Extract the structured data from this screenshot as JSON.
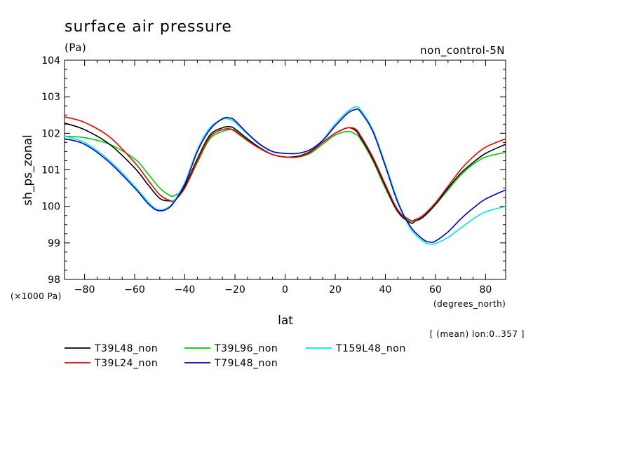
{
  "chart_data": {
    "type": "line",
    "title": "surface air pressure",
    "units": "(Pa)",
    "experiment": "non_control-5N",
    "ylabel": "sh_ps_zonal",
    "xlabel": "lat",
    "x_units": "(degrees_north)",
    "y_scale_note": "(×1000 Pa)",
    "averaging_note": "[ (mean) lon:0..357 ]",
    "xlim": [
      -88,
      88
    ],
    "ylim": [
      98,
      104
    ],
    "xticks": [
      -80,
      -60,
      -40,
      -20,
      0,
      20,
      40,
      60,
      80
    ],
    "yticks": [
      98,
      99,
      100,
      101,
      102,
      103,
      104
    ],
    "grid": false,
    "legend_position": "bottom",
    "series": [
      {
        "name": "T39L48_non",
        "color": "#000000",
        "x": [
          -88,
          -80,
          -70,
          -60,
          -55,
          -50,
          -46,
          -44,
          -40,
          -35,
          -30,
          -25,
          -22,
          -20,
          -15,
          -10,
          -5,
          0,
          5,
          10,
          15,
          20,
          25,
          28,
          30,
          35,
          40,
          45,
          50,
          52,
          55,
          60,
          65,
          70,
          75,
          80,
          88
        ],
        "y": [
          102.28,
          102.1,
          101.7,
          101.05,
          100.62,
          100.22,
          100.15,
          100.18,
          100.55,
          101.3,
          101.95,
          102.15,
          102.18,
          102.12,
          101.85,
          101.6,
          101.42,
          101.35,
          101.37,
          101.5,
          101.75,
          102.0,
          102.15,
          102.08,
          101.9,
          101.3,
          100.55,
          99.85,
          99.55,
          99.6,
          99.7,
          100.05,
          100.5,
          100.9,
          101.2,
          101.45,
          101.7
        ]
      },
      {
        "name": "T39L24_non",
        "color": "#ee0000",
        "x": [
          -88,
          -80,
          -70,
          -60,
          -55,
          -50,
          -46,
          -44,
          -40,
          -35,
          -30,
          -25,
          -22,
          -20,
          -15,
          -10,
          -5,
          0,
          5,
          10,
          15,
          20,
          25,
          28,
          30,
          35,
          40,
          45,
          50,
          52,
          55,
          60,
          65,
          70,
          75,
          80,
          88
        ],
        "y": [
          102.45,
          102.3,
          101.9,
          101.2,
          100.75,
          100.32,
          100.16,
          100.17,
          100.5,
          101.25,
          101.9,
          102.1,
          102.12,
          102.05,
          101.8,
          101.58,
          101.42,
          101.35,
          101.35,
          101.48,
          101.75,
          102.0,
          102.15,
          102.12,
          101.95,
          101.35,
          100.6,
          99.9,
          99.62,
          99.64,
          99.75,
          100.1,
          100.55,
          101.0,
          101.35,
          101.62,
          101.85
        ]
      },
      {
        "name": "T39L96_non",
        "color": "#00cc00",
        "x": [
          -88,
          -80,
          -70,
          -60,
          -55,
          -50,
          -46,
          -44,
          -40,
          -35,
          -30,
          -25,
          -22,
          -20,
          -15,
          -10,
          -5,
          0,
          5,
          10,
          15,
          20,
          25,
          28,
          30,
          35,
          40,
          45,
          50,
          52,
          55,
          60,
          65,
          70,
          75,
          80,
          88
        ],
        "y": [
          101.92,
          101.88,
          101.7,
          101.3,
          100.92,
          100.5,
          100.3,
          100.3,
          100.52,
          101.2,
          101.85,
          102.05,
          102.1,
          102.08,
          101.82,
          101.58,
          101.42,
          101.35,
          101.35,
          101.45,
          101.7,
          101.95,
          102.05,
          101.98,
          101.85,
          101.25,
          100.5,
          99.85,
          99.6,
          99.64,
          99.72,
          100.05,
          100.45,
          100.85,
          101.15,
          101.35,
          101.48
        ]
      },
      {
        "name": "T79L48_non",
        "color": "#0000cc",
        "x": [
          -88,
          -80,
          -70,
          -60,
          -55,
          -52,
          -50,
          -48,
          -45,
          -40,
          -35,
          -30,
          -25,
          -22,
          -20,
          -15,
          -10,
          -5,
          0,
          5,
          10,
          15,
          20,
          25,
          28,
          30,
          35,
          40,
          45,
          50,
          55,
          58,
          60,
          65,
          70,
          75,
          80,
          88
        ],
        "y": [
          101.85,
          101.7,
          101.2,
          100.5,
          100.1,
          99.92,
          99.88,
          99.9,
          100.05,
          100.6,
          101.5,
          102.1,
          102.4,
          102.42,
          102.35,
          102.0,
          101.7,
          101.5,
          101.45,
          101.45,
          101.55,
          101.8,
          102.2,
          102.55,
          102.65,
          102.6,
          102.05,
          101.1,
          100.1,
          99.45,
          99.1,
          99.02,
          99.05,
          99.3,
          99.65,
          99.95,
          100.2,
          100.45
        ]
      },
      {
        "name": "T159L48_non",
        "color": "#00e5ee",
        "x": [
          -88,
          -80,
          -70,
          -60,
          -55,
          -52,
          -50,
          -48,
          -45,
          -40,
          -35,
          -30,
          -25,
          -22,
          -20,
          -15,
          -10,
          -5,
          0,
          5,
          10,
          15,
          20,
          25,
          28,
          30,
          35,
          40,
          45,
          50,
          55,
          58,
          60,
          65,
          70,
          75,
          80,
          88
        ],
        "y": [
          101.92,
          101.75,
          101.25,
          100.55,
          100.15,
          99.95,
          99.9,
          99.92,
          100.08,
          100.65,
          101.55,
          102.15,
          102.38,
          102.38,
          102.3,
          101.98,
          101.68,
          101.5,
          101.45,
          101.45,
          101.55,
          101.82,
          102.25,
          102.6,
          102.72,
          102.65,
          102.1,
          101.15,
          100.15,
          99.4,
          99.05,
          98.96,
          98.98,
          99.15,
          99.4,
          99.65,
          99.85,
          100.0
        ]
      }
    ]
  }
}
